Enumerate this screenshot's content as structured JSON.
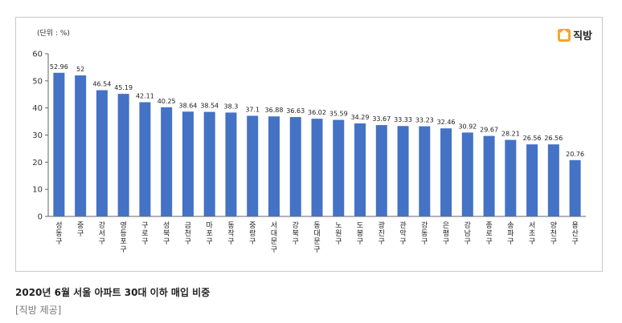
{
  "chart_data": {
    "type": "bar",
    "unit_label": "(단위 : %)",
    "categories": [
      "성동구",
      "중구",
      "강서구",
      "영등포구",
      "구로구",
      "성북구",
      "금천구",
      "마포구",
      "동작구",
      "중랑구",
      "서대문구",
      "강북구",
      "동대문구",
      "노원구",
      "도봉구",
      "광진구",
      "관악구",
      "강동구",
      "은평구",
      "강남구",
      "종로구",
      "송파구",
      "서초구",
      "양천구",
      "용산구"
    ],
    "values": [
      52.96,
      52,
      46.54,
      45.19,
      42.11,
      40.25,
      38.64,
      38.54,
      38.3,
      37.1,
      36.88,
      36.63,
      36.02,
      35.59,
      34.29,
      33.67,
      33.33,
      33.23,
      32.46,
      30.92,
      29.67,
      28.21,
      26.56,
      26.56,
      20.76
    ],
    "value_labels": [
      "52.96",
      "52",
      "46.54",
      "45.19",
      "42.11",
      "40.25",
      "38.64",
      "38.54",
      "38.3",
      "37.1",
      "36.88",
      "36.63",
      "36.02",
      "35.59",
      "34.29",
      "33.67",
      "33.33",
      "33.23",
      "32.46",
      "30.92",
      "29.67",
      "28.21",
      "26.56",
      "26.56",
      "20.76"
    ],
    "ylim": [
      0,
      60
    ],
    "yticks": [
      "0",
      "10",
      "20",
      "30",
      "40",
      "50",
      "60"
    ],
    "bar_color": "#4472c4",
    "grid": false
  },
  "logo": {
    "text": "직방",
    "icon": "house-icon"
  },
  "caption": "2020년 6월 서울 아파트 30대 이하 매입 비중",
  "source": "[직방 제공]"
}
